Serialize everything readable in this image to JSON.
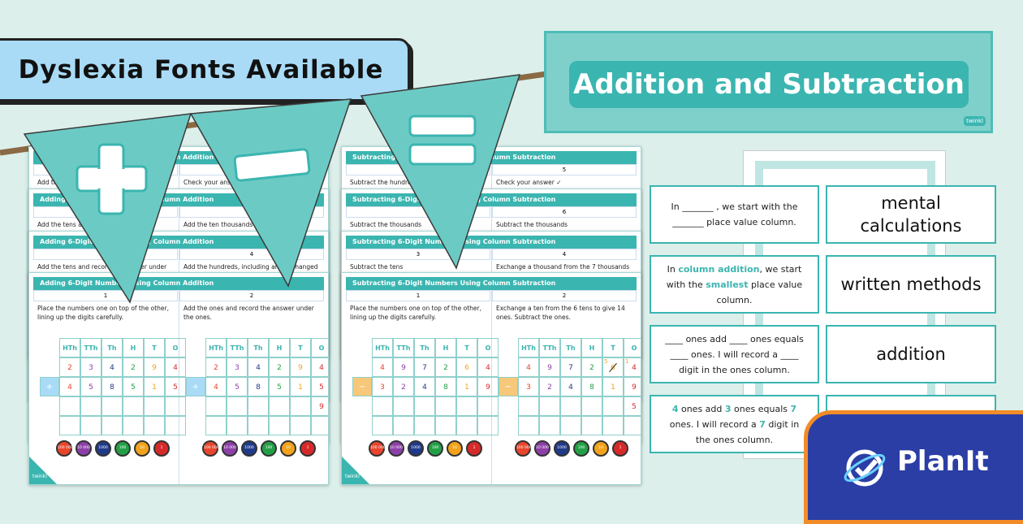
{
  "badge": "Dyslexia Fonts Available",
  "banner": {
    "title": "Addition and Subtraction"
  },
  "logo_small": "twinkl",
  "brand": "PlanIt",
  "headers": [
    "HTh",
    "TTh",
    "Th",
    "H",
    "T",
    "O"
  ],
  "counters": [
    "100 000",
    "10 000",
    "1000",
    "100",
    "10",
    "1"
  ],
  "place_colors": [
    "#e8452c",
    "#8d3fa8",
    "#1f3a8a",
    "#23a047",
    "#f3a31b",
    "#d62a2a"
  ],
  "worksheets": [
    {
      "title": "Adding 6-Digit Numbers Using Column Addition",
      "operator": "+",
      "backs": [
        {
          "numbers": [
            null,
            5
          ],
          "steps": [
            "Add the thousands",
            "Check your answer"
          ]
        },
        {
          "numbers": [
            null,
            4
          ],
          "steps": [
            "Add the tens and record the answer",
            "Add the ten thousands"
          ]
        },
        {
          "numbers": [
            null,
            4
          ],
          "steps": [
            "Add the tens and record the answer under",
            "Add the hundreds, including any exchanged hundreds"
          ]
        }
      ],
      "steps": [
        {
          "number": 1,
          "text": "Place the numbers one on top of the other, lining up the digits carefully."
        },
        {
          "number": 2,
          "text": "Add the ones and record the answer under the ones."
        }
      ],
      "grids": [
        {
          "rows": [
            [
              2,
              3,
              4,
              2,
              9,
              4
            ],
            [
              4,
              5,
              8,
              5,
              1,
              5
            ],
            [
              null,
              null,
              null,
              null,
              null,
              null
            ]
          ]
        },
        {
          "rows": [
            [
              2,
              3,
              4,
              2,
              9,
              4
            ],
            [
              4,
              5,
              8,
              5,
              1,
              5
            ],
            [
              null,
              null,
              null,
              null,
              null,
              9
            ]
          ]
        }
      ]
    },
    {
      "title": "Subtracting 6-Digit Numbers Using Column Subtraction",
      "operator": "−",
      "backs": [
        {
          "numbers": [
            null,
            5
          ],
          "steps": [
            "Subtract the hundreds",
            "Check your answer ✓"
          ]
        },
        {
          "numbers": [
            null,
            6
          ],
          "steps": [
            "Subtract the thousands",
            "Subtract the thousands"
          ]
        },
        {
          "numbers": [
            3,
            4
          ],
          "steps": [
            "Subtract the tens",
            "Exchange a thousand from the 7 thousands"
          ]
        }
      ],
      "steps": [
        {
          "number": 1,
          "text": "Place the numbers one on top of the other, lining up the digits carefully."
        },
        {
          "number": 2,
          "text": "Exchange a ten from the 6 tens to give 14 ones. Subtract the ones."
        }
      ],
      "grids": [
        {
          "rows": [
            [
              4,
              9,
              7,
              2,
              6,
              4
            ],
            [
              3,
              2,
              4,
              8,
              1,
              9
            ],
            [
              null,
              null,
              null,
              null,
              null,
              null
            ]
          ]
        },
        {
          "rows": [
            [
              4,
              9,
              7,
              2,
              6,
              4
            ],
            [
              3,
              2,
              4,
              8,
              1,
              9
            ],
            [
              null,
              null,
              null,
              null,
              null,
              5
            ]
          ],
          "exchange": {
            "tens": 5,
            "carry": 1
          }
        }
      ]
    }
  ],
  "cards": [
    {
      "sentence": [
        {
          "text": "In _______ , we start with the _______ place value column."
        }
      ],
      "word": "mental calculations"
    },
    {
      "sentence": [
        {
          "text": "In "
        },
        {
          "text": "column addition",
          "em": true
        },
        {
          "text": ", we start with the "
        },
        {
          "text": "smallest",
          "em": true
        },
        {
          "text": " place value column."
        }
      ],
      "word": "written methods"
    },
    {
      "sentence": [
        {
          "text": "____ ones add ____ ones equals ____ ones. I will record a ____ digit in the ones column."
        }
      ],
      "word": "addition"
    },
    {
      "sentence": [
        {
          "text": "4",
          "em": true
        },
        {
          "text": " ones add "
        },
        {
          "text": "3",
          "em": true
        },
        {
          "text": " ones equals "
        },
        {
          "text": "7",
          "em": true
        },
        {
          "text": " ones. I will record a "
        },
        {
          "text": "7",
          "em": true
        },
        {
          "text": " digit in the ones column."
        }
      ],
      "word": null
    }
  ]
}
